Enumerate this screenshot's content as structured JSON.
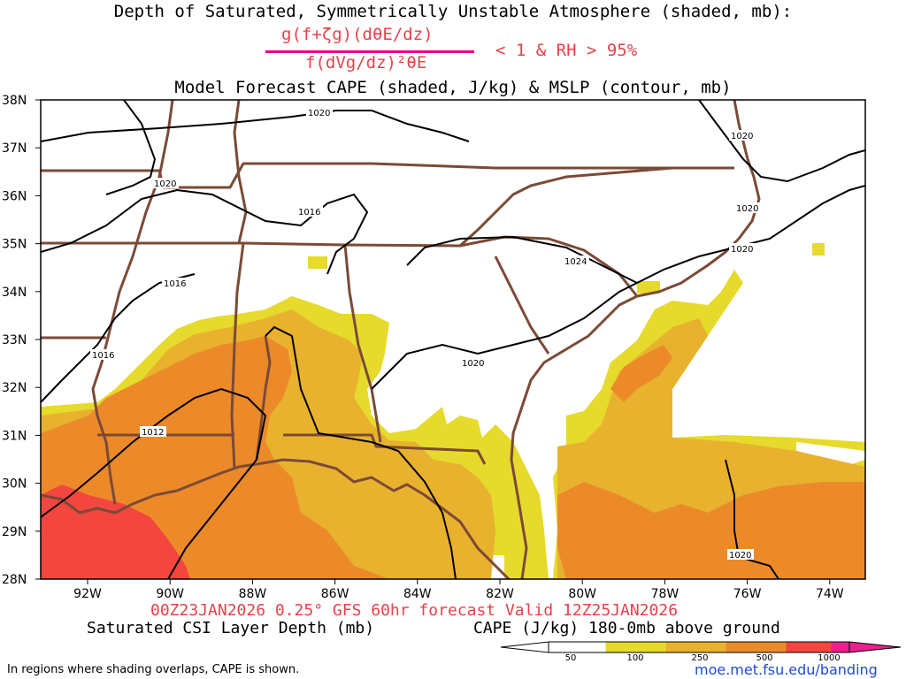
{
  "title": {
    "line1": "Depth of Saturated, Symmetrically Unstable Atmosphere (shaded, mb):",
    "fraction_numerator": "g(f+ζg)(dθE/dz)",
    "fraction_denominator": "f(dVg/dz)²θE",
    "condition": "< 1 & RH > 95%",
    "line3": "Model Forecast CAPE (shaded, J/kg) & MSLP (contour, mb)"
  },
  "axes": {
    "lat_labels": [
      "38N",
      "37N",
      "36N",
      "35N",
      "34N",
      "33N",
      "32N",
      "31N",
      "30N",
      "29N",
      "28N"
    ],
    "lon_labels": [
      "92W",
      "90W",
      "88W",
      "86W",
      "84W",
      "82W",
      "80W",
      "78W",
      "76W",
      "74W"
    ]
  },
  "isobar_labels": [
    "1020",
    "1020",
    "1016",
    "1016",
    "1016",
    "1012",
    "1024",
    "1020",
    "1020",
    "1020",
    "1020",
    "1020"
  ],
  "footer": {
    "init_line": "00Z23JAN2026 0.25° GFS 60hr forecast Valid 12Z25JAN2026",
    "left_label": "Saturated CSI Layer Depth (mb)",
    "right_label": "CAPE (J/kg) 180-0mb above ground",
    "note": "In regions where shading overlaps, CAPE is shown.",
    "credit": "moe.met.fsu.edu/banding"
  },
  "colorbar": {
    "ticks": [
      "50",
      "100",
      "250",
      "500",
      "1000"
    ],
    "colors": [
      "#ffffff",
      "#e6da2c",
      "#e8b22e",
      "#ec8a2a",
      "#f2463f",
      "#ec1f8c"
    ]
  },
  "colors": {
    "cape_50_100": "#e6da2c",
    "cape_100_250": "#e8b22e",
    "cape_250_500": "#ec8a2a",
    "cape_500_1000": "#f2463f",
    "coast_border": "#7b4a36",
    "isobar": "#000000",
    "title_red": "#e8414a",
    "credit_blue": "#1f4bd6"
  }
}
